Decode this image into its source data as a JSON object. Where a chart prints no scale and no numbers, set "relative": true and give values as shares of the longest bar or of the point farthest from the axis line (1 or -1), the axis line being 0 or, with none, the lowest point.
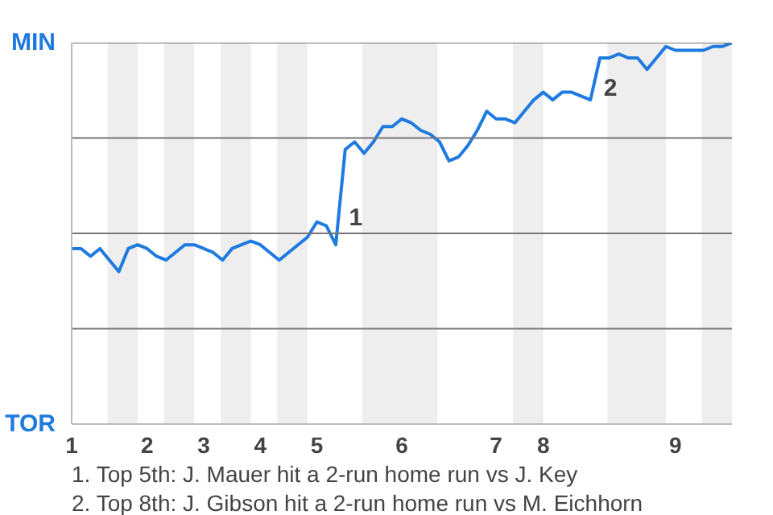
{
  "chart_data": {
    "type": "line",
    "relative": true,
    "categories": [
      "1",
      null,
      null,
      null,
      null,
      null,
      null,
      null,
      "2",
      null,
      null,
      null,
      null,
      null,
      "3",
      null,
      null,
      null,
      null,
      null,
      "4",
      null,
      null,
      null,
      null,
      null,
      "5",
      null,
      null,
      null,
      null,
      null,
      null,
      null,
      null,
      "6",
      null,
      null,
      null,
      null,
      null,
      null,
      null,
      null,
      null,
      "7",
      null,
      null,
      null,
      null,
      "8",
      null,
      null,
      null,
      null,
      null,
      null,
      null,
      null,
      null,
      null,
      null,
      null,
      null,
      "9",
      null,
      null,
      null,
      null,
      null,
      null
    ],
    "series": [
      {
        "color": "#1f7ae0",
        "values": [
          0.46,
          0.46,
          0.44,
          0.46,
          0.43,
          0.4,
          0.46,
          0.47,
          0.46,
          0.44,
          0.43,
          0.45,
          0.47,
          0.47,
          0.46,
          0.45,
          0.43,
          0.46,
          0.47,
          0.48,
          0.47,
          0.45,
          0.43,
          0.45,
          0.47,
          0.49,
          0.53,
          0.52,
          0.47,
          0.72,
          0.74,
          0.71,
          0.74,
          0.78,
          0.78,
          0.8,
          0.79,
          0.77,
          0.76,
          0.74,
          0.69,
          0.7,
          0.73,
          0.77,
          0.82,
          0.8,
          0.8,
          0.79,
          0.82,
          0.85,
          0.87,
          0.85,
          0.87,
          0.87,
          0.86,
          0.85,
          0.96,
          0.96,
          0.97,
          0.96,
          0.96,
          0.93,
          0.96,
          0.99,
          0.98,
          0.98,
          0.98,
          0.98,
          0.99,
          0.99,
          1.0
        ]
      }
    ],
    "grid": false,
    "marker": "none",
    "ref_lines": [
      {
        "axis": "y",
        "value": 0.25,
        "color": "#777777"
      },
      {
        "axis": "y",
        "value": 0.5,
        "color": "#777777"
      },
      {
        "axis": "y",
        "value": 0.75,
        "color": "#777777"
      },
      {
        "axis": "y",
        "value": 1,
        "color": "#777777"
      }
    ],
    "annotations": [
      "MIN",
      "TOR",
      "1",
      "2",
      "1. Top 5th: J. Mauer hit a 2-run home run vs J. Key",
      "2. Top 8th: J. Gibson hit a 2-run home run vs M. Eichhorn"
    ]
  }
}
